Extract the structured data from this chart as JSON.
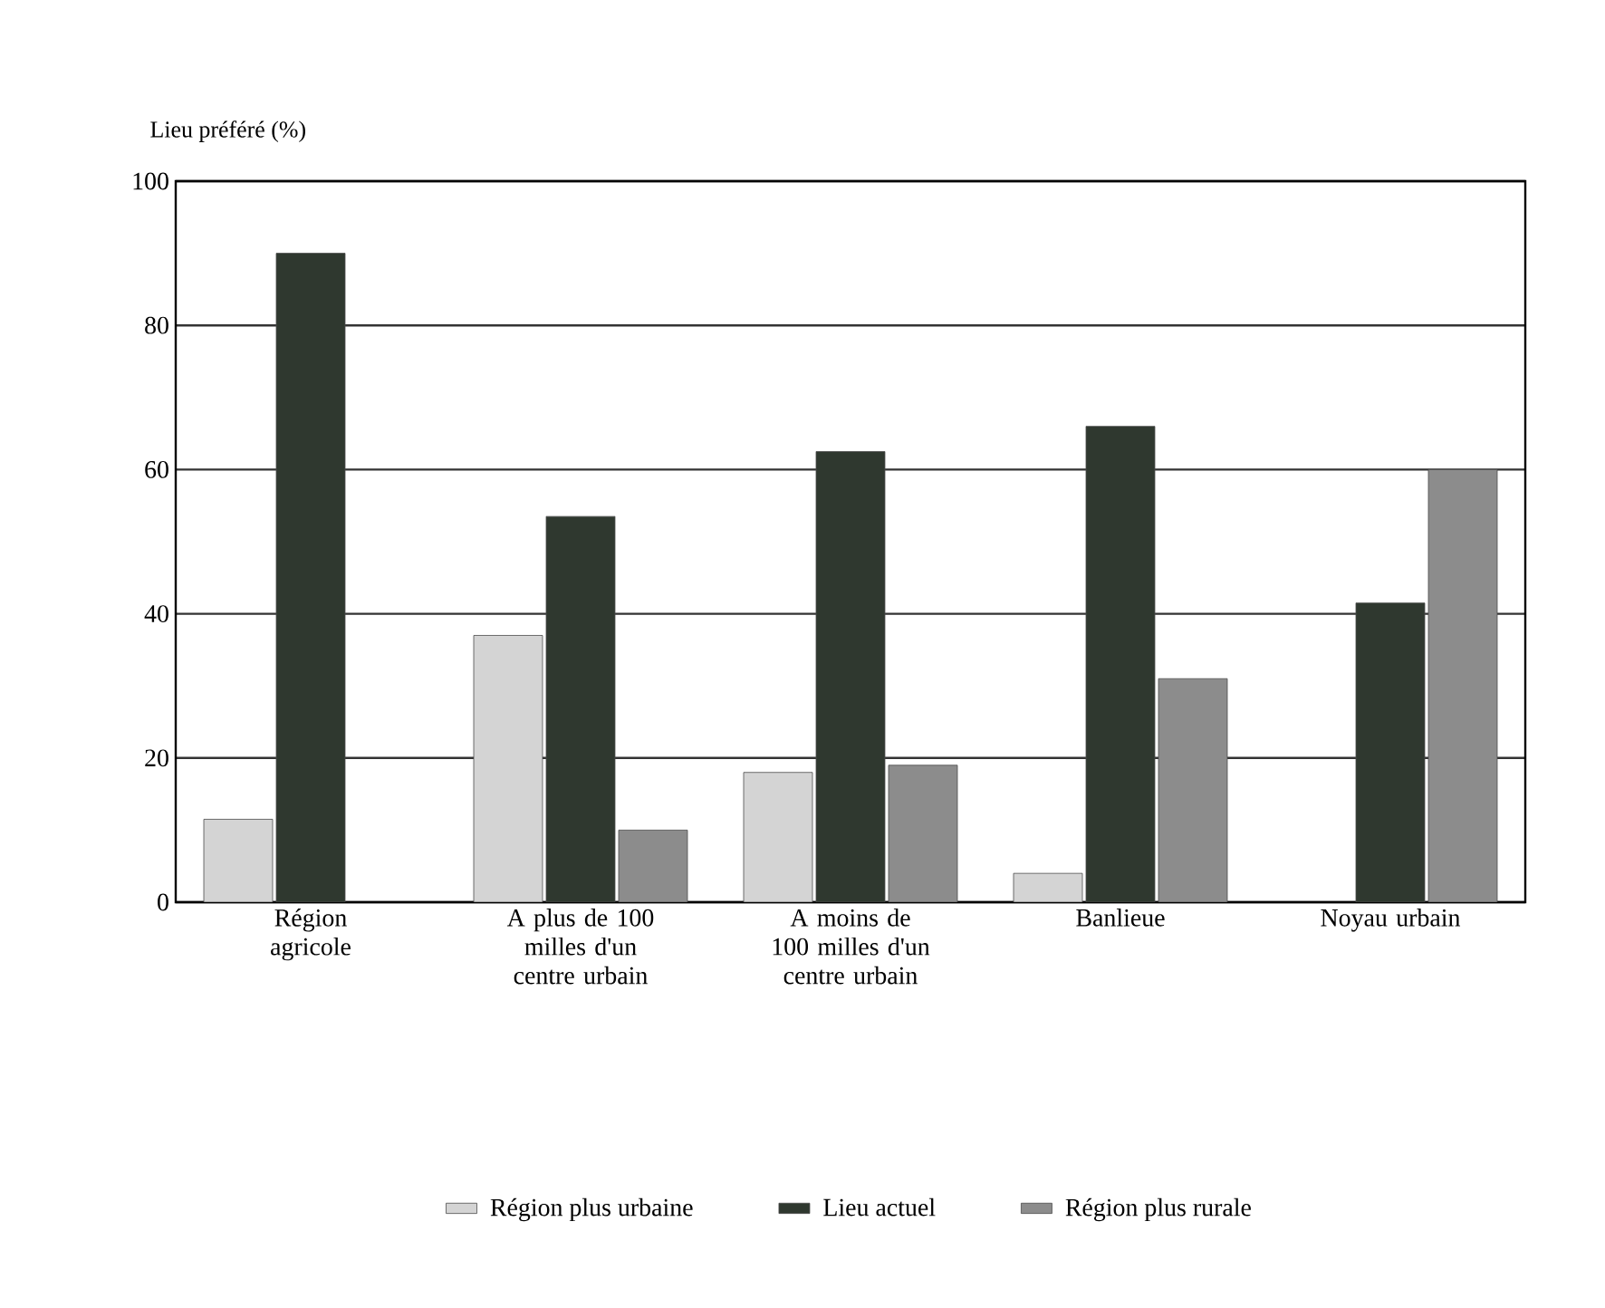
{
  "chart_data": {
    "type": "bar",
    "ylabel": "Lieu préféré (%)",
    "categories": [
      "Région agricole",
      "A plus de 100 milles d'un centre urbain",
      "A moins de 100 milles d'un centre urbain",
      "Banlieue",
      "Noyau urbain"
    ],
    "series": [
      {
        "name": "Région plus urbaine",
        "color": "#d4d4d4",
        "values": [
          11.5,
          37,
          18,
          4,
          null
        ]
      },
      {
        "name": "Lieu actuel",
        "color": "#2f382f",
        "values": [
          90,
          53.5,
          62.5,
          66,
          41.5
        ]
      },
      {
        "name": "Région plus rurale",
        "color": "#8c8c8c",
        "values": [
          null,
          10,
          19,
          31,
          60
        ]
      }
    ],
    "ylim": [
      0,
      100
    ],
    "yticks": [
      0,
      20,
      40,
      60,
      80,
      100
    ],
    "grid": "y",
    "legend": "bottom"
  }
}
